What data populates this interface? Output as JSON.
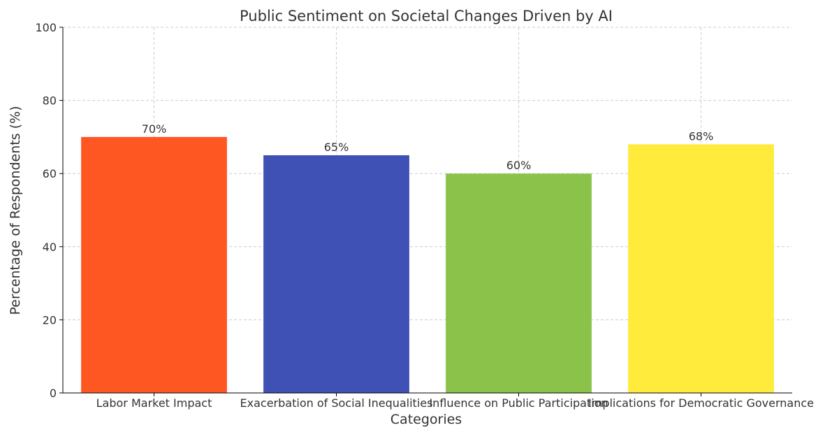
{
  "chart_data": {
    "type": "bar",
    "title": "Public Sentiment on Societal Changes Driven by AI",
    "xlabel": "Categories",
    "ylabel": "Percentage of Respondents (%)",
    "categories": [
      "Labor Market Impact",
      "Exacerbation of Social Inequalities",
      "Influence on Public Participation",
      "Implications for Democratic Governance"
    ],
    "values": [
      70,
      65,
      60,
      68
    ],
    "value_labels": [
      "70%",
      "65%",
      "60%",
      "68%"
    ],
    "colors": [
      "#ff5722",
      "#3f51b5",
      "#8bc34a",
      "#ffeb3b"
    ],
    "ylim": [
      0,
      100
    ],
    "yticks": [
      0,
      20,
      40,
      60,
      80,
      100
    ],
    "ytick_labels": [
      "0",
      "20",
      "40",
      "60",
      "80",
      "100"
    ],
    "grid": true
  }
}
